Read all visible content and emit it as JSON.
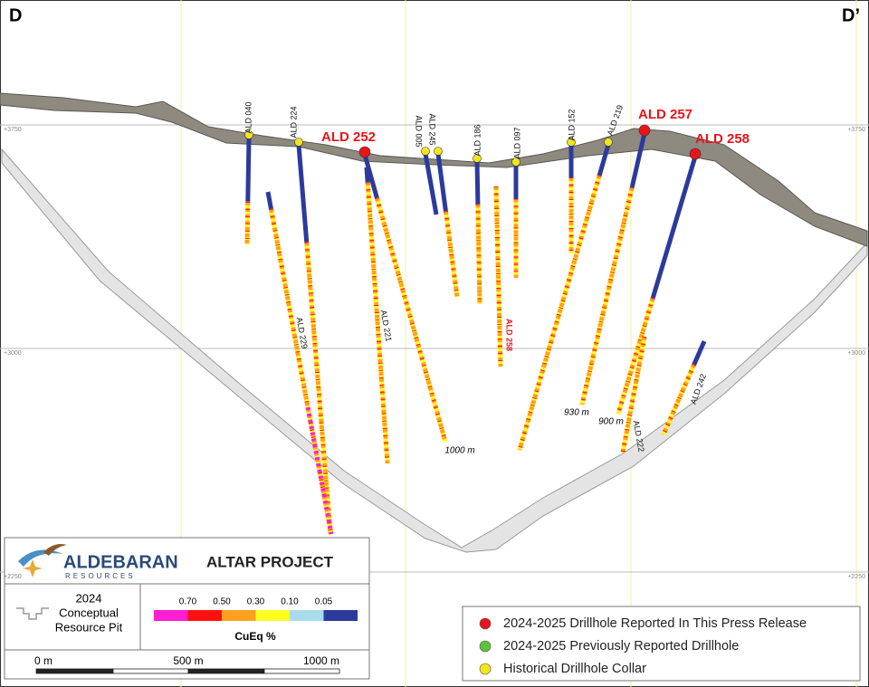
{
  "section": {
    "left_label": "D",
    "right_label": "D’"
  },
  "elevations": [
    "+3750",
    "+3000",
    "+2250"
  ],
  "drillholes": [
    {
      "label": "ALD 040"
    },
    {
      "label": "ALD 224"
    },
    {
      "label": "ALD 252"
    },
    {
      "label": "ALD 229"
    },
    {
      "label": "ALD 221"
    },
    {
      "label": "ALD 005"
    },
    {
      "label": "ALD 245"
    },
    {
      "label": "ALD 186"
    },
    {
      "label": "ALD 097"
    },
    {
      "label": "ALD 258"
    },
    {
      "label": "ALD 152"
    },
    {
      "label": "ALD 219"
    },
    {
      "label": "ALD 257"
    },
    {
      "label": "ALD 258"
    },
    {
      "label": "ALD 222"
    },
    {
      "label": "ALD 242"
    }
  ],
  "depths": [
    "1000 m",
    "930 m",
    "900 m"
  ],
  "title_box": {
    "company": "ALDEBARAN",
    "subtitle": "RESOURCES",
    "project": "ALTAR PROJECT"
  },
  "pit_legend": {
    "lines": [
      "2024",
      "Conceptual",
      "Resource Pit"
    ]
  },
  "grade_legend": {
    "thresholds": [
      "0.70",
      "0.50",
      "0.30",
      "0.10",
      "0.05"
    ],
    "title": "CuEq %",
    "colors": [
      "#ff1ed2",
      "#ff1010",
      "#ffa020",
      "#ffff20",
      "#a8dcea",
      "#2c3a9c"
    ]
  },
  "scale_bar": {
    "labels": [
      "0 m",
      "500 m",
      "1000 m"
    ]
  },
  "legend": [
    {
      "label": "2024-2025 Drillhole Reported In This Press Release",
      "color": "#e8141b"
    },
    {
      "label": "2024-2025 Previously Reported Drillhole",
      "color": "#5cc43a"
    },
    {
      "label": "Historical Drillhole Collar",
      "color": "#f2e51c"
    }
  ]
}
